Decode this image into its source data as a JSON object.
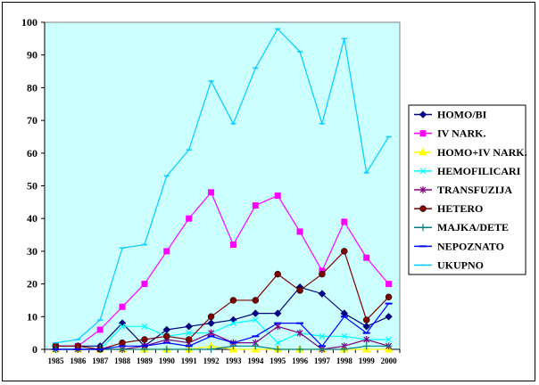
{
  "chart_data": {
    "type": "line",
    "title": "",
    "xlabel": "",
    "ylabel": "",
    "ylim": [
      0,
      100
    ],
    "yticks": [
      0,
      10,
      20,
      30,
      40,
      50,
      60,
      70,
      80,
      90,
      100
    ],
    "grid": false,
    "legend_position": "right",
    "plot_background": "#CCFFFF",
    "x": [
      "1985",
      "1986",
      "1987",
      "1988",
      "1989",
      "1990",
      "1991",
      "1992",
      "1993",
      "1994",
      "1995",
      "1996",
      "1997",
      "1998",
      "1999",
      "2000"
    ],
    "series": [
      {
        "name": "HOMO/BI",
        "color": "#000080",
        "marker": "diamond",
        "values": [
          1,
          1,
          1,
          8,
          1,
          6,
          7,
          8,
          9,
          11,
          11,
          19,
          17,
          11,
          7,
          10
        ]
      },
      {
        "name": "IV NARK.",
        "color": "#FF00FF",
        "marker": "square",
        "values": [
          1,
          1,
          6,
          13,
          20,
          30,
          40,
          48,
          32,
          44,
          47,
          36,
          24,
          39,
          28,
          20
        ]
      },
      {
        "name": "HOMO+IV NARK.",
        "color": "#FFFF00",
        "marker": "triangle",
        "values": [
          0,
          0,
          0,
          0,
          0,
          0,
          0,
          1,
          0,
          0,
          0,
          0,
          0,
          0,
          0,
          0
        ]
      },
      {
        "name": "HEMOFILICARI",
        "color": "#00FFFF",
        "marker": "x",
        "values": [
          0,
          0,
          0,
          7,
          7,
          4,
          5,
          5,
          8,
          9,
          2,
          5,
          4,
          4,
          3,
          3
        ]
      },
      {
        "name": "TRANSFUZIJA",
        "color": "#800080",
        "marker": "star",
        "values": [
          0,
          0,
          0,
          0,
          1,
          3,
          2,
          5,
          2,
          2,
          7,
          5,
          0,
          1,
          3,
          1
        ]
      },
      {
        "name": "HETERO",
        "color": "#800000",
        "marker": "circle",
        "values": [
          1,
          1,
          0,
          2,
          3,
          4,
          3,
          10,
          15,
          15,
          23,
          18,
          23,
          30,
          9,
          16
        ]
      },
      {
        "name": "MAJKA/DETE",
        "color": "#008080",
        "marker": "plus",
        "values": [
          0,
          0,
          0,
          0,
          0,
          0,
          0,
          0,
          1,
          1,
          0,
          0,
          0,
          0,
          1,
          1
        ]
      },
      {
        "name": "NEPOZNATO",
        "color": "#0000FF",
        "marker": "dash",
        "values": [
          0,
          0,
          0,
          1,
          1,
          2,
          1,
          4,
          2,
          4,
          8,
          8,
          1,
          10,
          5,
          14
        ]
      },
      {
        "name": "UKUPNO",
        "color": "#00CCFF",
        "marker": "bar",
        "values": [
          2,
          3,
          9,
          31,
          32,
          53,
          61,
          82,
          69,
          86,
          98,
          91,
          69,
          95,
          54,
          65
        ]
      }
    ]
  }
}
